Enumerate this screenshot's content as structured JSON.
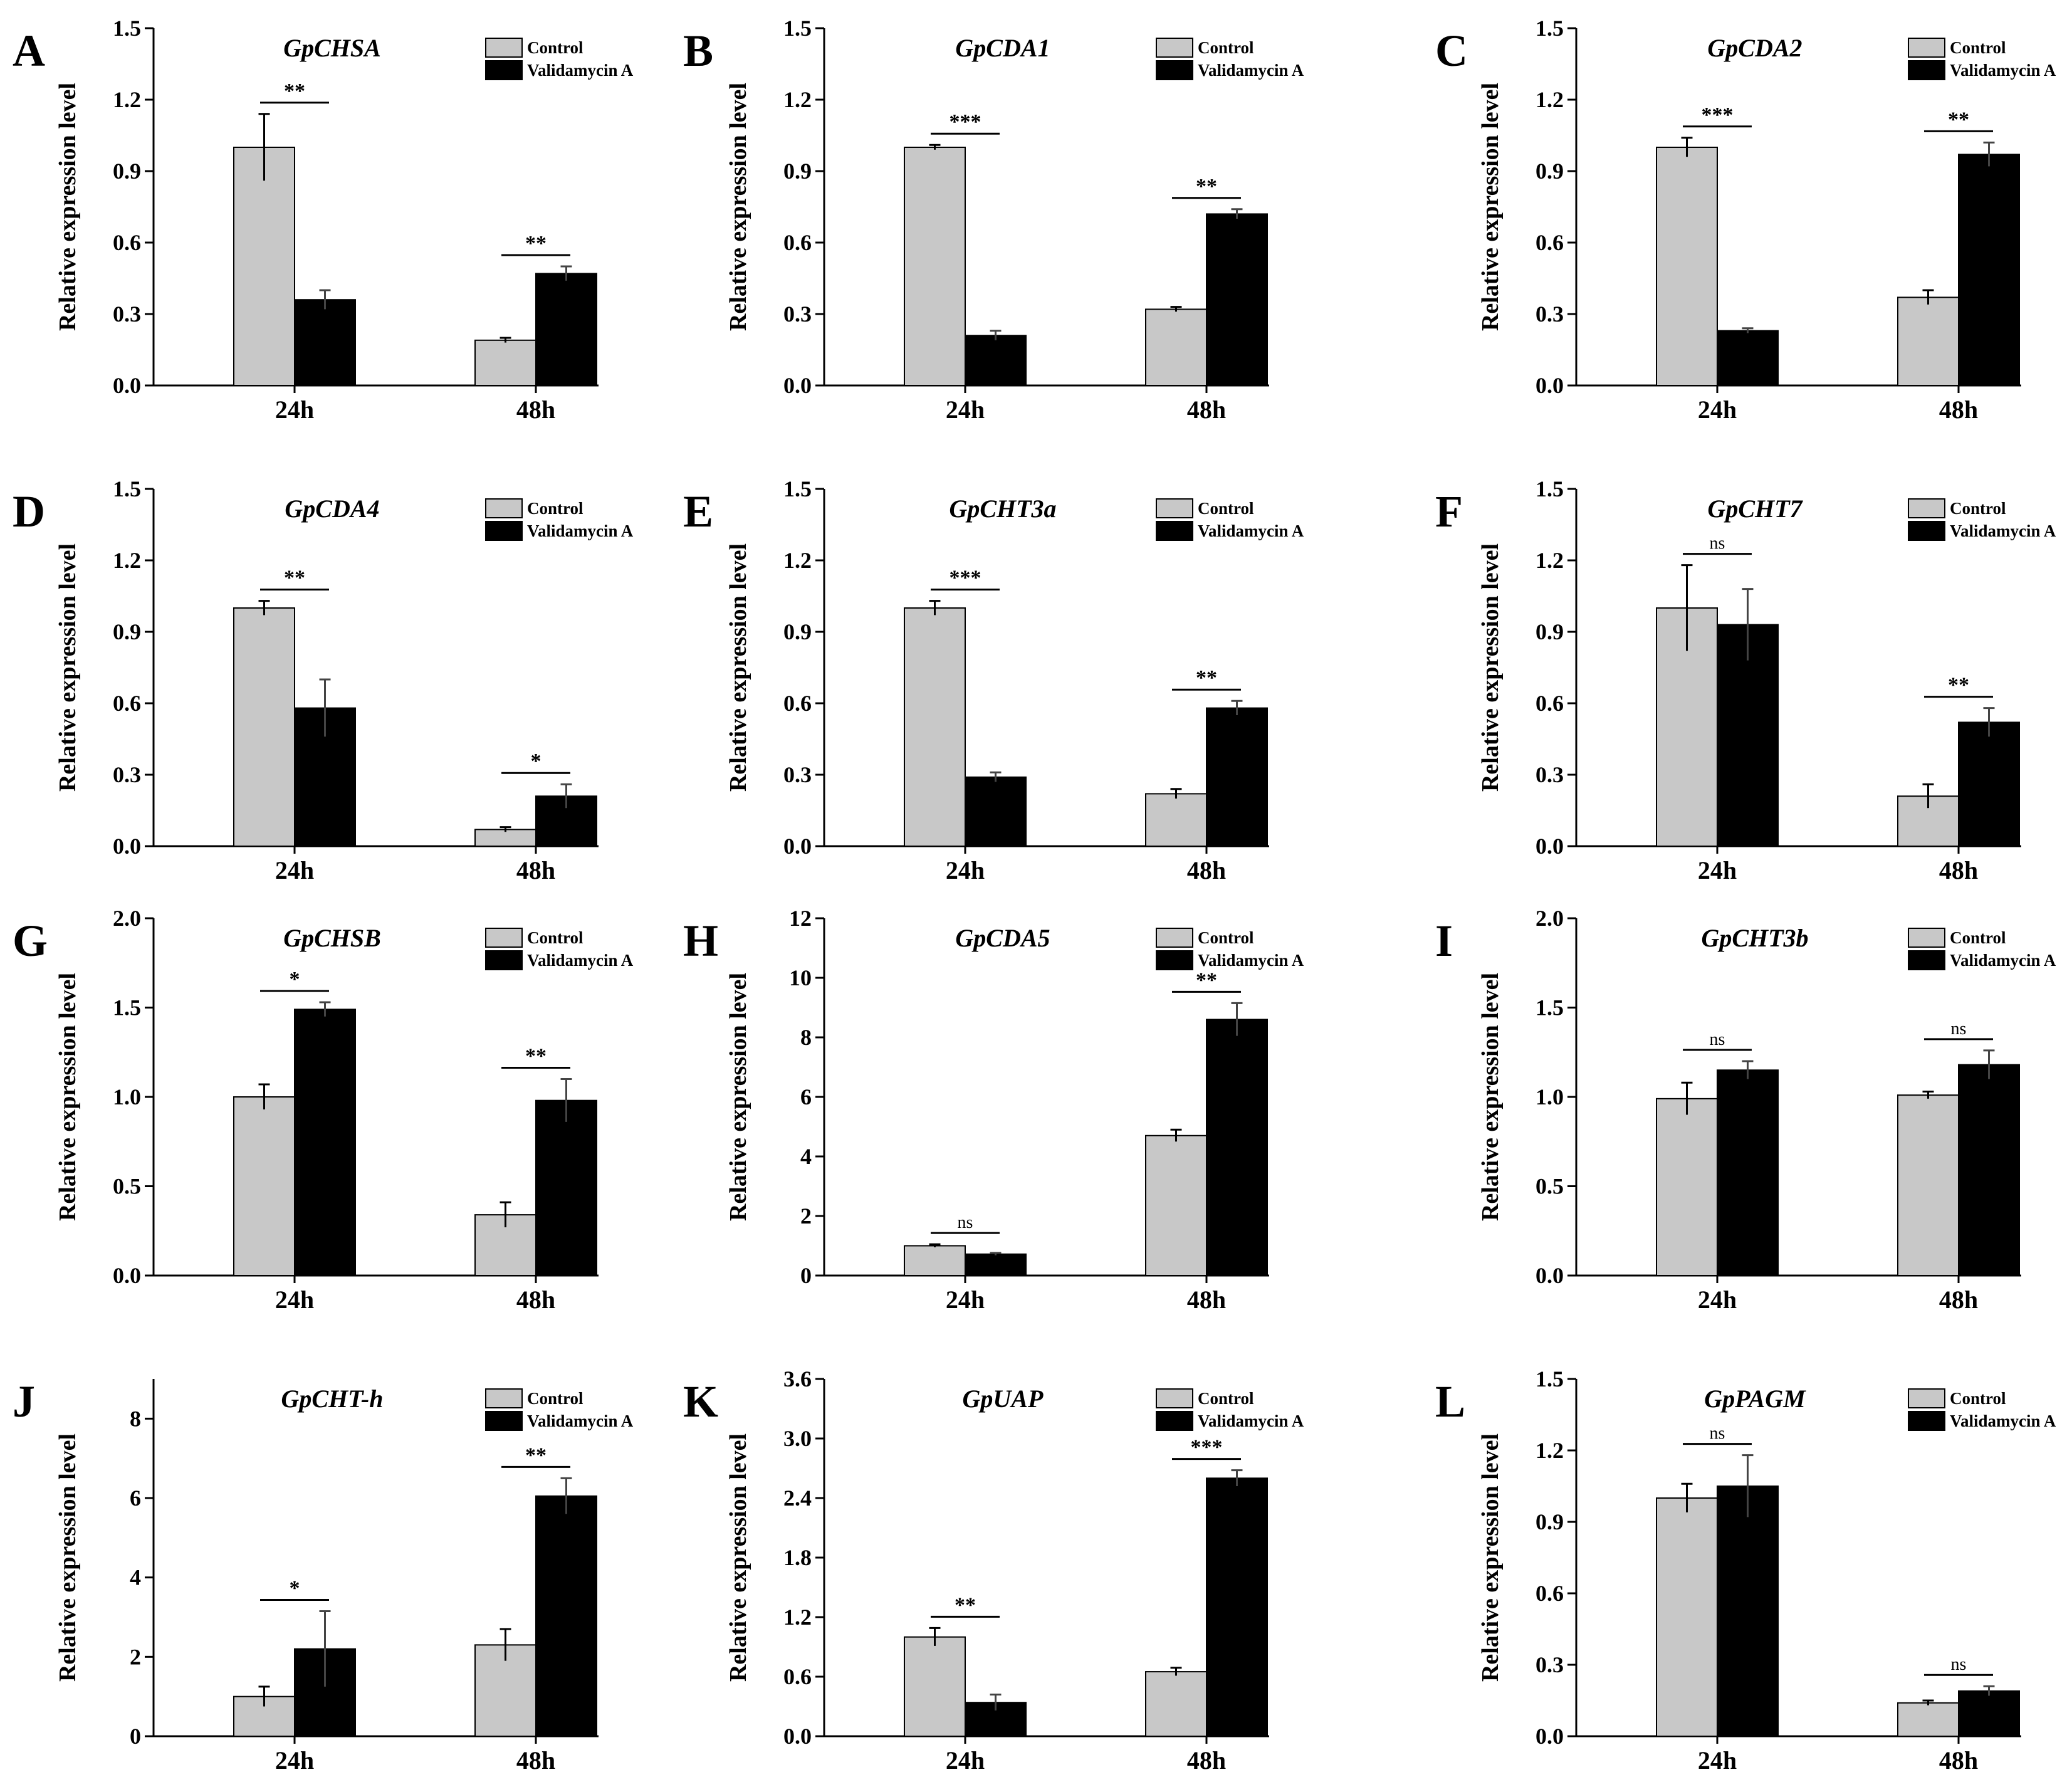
{
  "figure": {
    "colors": {
      "control": "#c8c8c8",
      "treatment": "#000000",
      "axis": "#000000"
    },
    "legend_labels": [
      "Control",
      "Validamycin A"
    ],
    "categories": [
      "24h",
      "48h"
    ],
    "ylabel": "Relative expression level"
  },
  "chart_data": [
    {
      "type": "bar",
      "panel": "A",
      "title": "GpCHSA",
      "xlabel": "",
      "ylabel": "Relative expression level",
      "categories": [
        "24h",
        "48h"
      ],
      "ylim": [
        0,
        1.5
      ],
      "yticks": [
        "0.0",
        "0.3",
        "0.6",
        "0.9",
        "1.2",
        "1.5"
      ],
      "legend": "top-right",
      "series": [
        {
          "name": "Control",
          "values": [
            1.0,
            0.19
          ],
          "errors": [
            0.14,
            0.01
          ]
        },
        {
          "name": "Validamycin A",
          "values": [
            0.36,
            0.47
          ],
          "errors": [
            0.04,
            0.03
          ]
        }
      ],
      "significance": [
        "**",
        "**"
      ]
    },
    {
      "type": "bar",
      "panel": "B",
      "title": "GpCDA1",
      "xlabel": "",
      "ylabel": "Relative expression level",
      "categories": [
        "24h",
        "48h"
      ],
      "ylim": [
        0,
        1.5
      ],
      "yticks": [
        "0.0",
        "0.3",
        "0.6",
        "0.9",
        "1.2",
        "1.5"
      ],
      "legend": "top-right",
      "series": [
        {
          "name": "Control",
          "values": [
            1.0,
            0.32
          ],
          "errors": [
            0.01,
            0.01
          ]
        },
        {
          "name": "Validamycin A",
          "values": [
            0.21,
            0.72
          ],
          "errors": [
            0.02,
            0.02
          ]
        }
      ],
      "significance": [
        "***",
        "**"
      ]
    },
    {
      "type": "bar",
      "panel": "C",
      "title": "GpCDA2",
      "xlabel": "",
      "ylabel": "Relative expression level",
      "categories": [
        "24h",
        "48h"
      ],
      "ylim": [
        0,
        1.5
      ],
      "yticks": [
        "0.0",
        "0.3",
        "0.6",
        "0.9",
        "1.2",
        "1.5"
      ],
      "legend": "top-right",
      "series": [
        {
          "name": "Control",
          "values": [
            1.0,
            0.37
          ],
          "errors": [
            0.04,
            0.03
          ]
        },
        {
          "name": "Validamycin A",
          "values": [
            0.23,
            0.97
          ],
          "errors": [
            0.01,
            0.05
          ]
        }
      ],
      "significance": [
        "***",
        "**"
      ]
    },
    {
      "type": "bar",
      "panel": "D",
      "title": "GpCDA4",
      "xlabel": "",
      "ylabel": "Relative expression level",
      "categories": [
        "24h",
        "48h"
      ],
      "ylim": [
        0,
        1.5
      ],
      "yticks": [
        "0.0",
        "0.3",
        "0.6",
        "0.9",
        "1.2",
        "1.5"
      ],
      "legend": "top-right",
      "series": [
        {
          "name": "Control",
          "values": [
            1.0,
            0.07
          ],
          "errors": [
            0.03,
            0.01
          ]
        },
        {
          "name": "Validamycin A",
          "values": [
            0.58,
            0.21
          ],
          "errors": [
            0.12,
            0.05
          ]
        }
      ],
      "significance": [
        "**",
        "*"
      ]
    },
    {
      "type": "bar",
      "panel": "E",
      "title": "GpCHT3a",
      "xlabel": "",
      "ylabel": "Relative expression level",
      "categories": [
        "24h",
        "48h"
      ],
      "ylim": [
        0,
        1.5
      ],
      "yticks": [
        "0.0",
        "0.3",
        "0.6",
        "0.9",
        "1.2",
        "1.5"
      ],
      "legend": "top-right",
      "series": [
        {
          "name": "Control",
          "values": [
            1.0,
            0.22
          ],
          "errors": [
            0.03,
            0.02
          ]
        },
        {
          "name": "Validamycin A",
          "values": [
            0.29,
            0.58
          ],
          "errors": [
            0.02,
            0.03
          ]
        }
      ],
      "significance": [
        "***",
        "**"
      ]
    },
    {
      "type": "bar",
      "panel": "F",
      "title": "GpCHT7",
      "xlabel": "",
      "ylabel": "Relative expression level",
      "categories": [
        "24h",
        "48h"
      ],
      "ylim": [
        0,
        1.5
      ],
      "yticks": [
        "0.0",
        "0.3",
        "0.6",
        "0.9",
        "1.2",
        "1.5"
      ],
      "legend": "top-right",
      "series": [
        {
          "name": "Control",
          "values": [
            1.0,
            0.21
          ],
          "errors": [
            0.18,
            0.05
          ]
        },
        {
          "name": "Validamycin A",
          "values": [
            0.93,
            0.52
          ],
          "errors": [
            0.15,
            0.06
          ]
        }
      ],
      "significance": [
        "ns",
        "**"
      ]
    },
    {
      "type": "bar",
      "panel": "G",
      "title": "GpCHSB",
      "xlabel": "",
      "ylabel": "Relative expression level",
      "categories": [
        "24h",
        "48h"
      ],
      "ylim": [
        0,
        2.0
      ],
      "yticks": [
        "0.0",
        "0.5",
        "1.0",
        "1.5",
        "2.0"
      ],
      "legend": "top-right",
      "series": [
        {
          "name": "Control",
          "values": [
            1.0,
            0.34
          ],
          "errors": [
            0.07,
            0.07
          ]
        },
        {
          "name": "Validamycin A",
          "values": [
            1.49,
            0.98
          ],
          "errors": [
            0.04,
            0.12
          ]
        }
      ],
      "significance": [
        "*",
        "**"
      ]
    },
    {
      "type": "bar",
      "panel": "H",
      "title": "GpCDA5",
      "xlabel": "",
      "ylabel": "Relative expression level",
      "categories": [
        "24h",
        "48h"
      ],
      "ylim": [
        0,
        12
      ],
      "yticks": [
        "0",
        "2",
        "4",
        "6",
        "8",
        "10",
        "12"
      ],
      "legend": "top-right",
      "series": [
        {
          "name": "Control",
          "values": [
            1.0,
            4.7
          ],
          "errors": [
            0.05,
            0.2
          ]
        },
        {
          "name": "Validamycin A",
          "values": [
            0.72,
            8.6
          ],
          "errors": [
            0.04,
            0.55
          ]
        }
      ],
      "significance": [
        "ns",
        "**"
      ]
    },
    {
      "type": "bar",
      "panel": "I",
      "title": "GpCHT3b",
      "xlabel": "",
      "ylabel": "Relative expression level",
      "categories": [
        "24h",
        "48h"
      ],
      "ylim": [
        0,
        2.0
      ],
      "yticks": [
        "0.0",
        "0.5",
        "1.0",
        "1.5",
        "2.0"
      ],
      "legend": "top-right",
      "series": [
        {
          "name": "Control",
          "values": [
            0.99,
            1.01
          ],
          "errors": [
            0.09,
            0.02
          ]
        },
        {
          "name": "Validamycin A",
          "values": [
            1.15,
            1.18
          ],
          "errors": [
            0.05,
            0.08
          ]
        }
      ],
      "significance": [
        "ns",
        "ns"
      ]
    },
    {
      "type": "bar",
      "panel": "J",
      "title": "GpCHT-h",
      "xlabel": "",
      "ylabel": "Relative expression level",
      "categories": [
        "24h",
        "48h"
      ],
      "ylim": [
        0,
        9
      ],
      "yticks": [
        "0",
        "2",
        "4",
        "6",
        "8"
      ],
      "legend": "top-right",
      "series": [
        {
          "name": "Control",
          "values": [
            1.0,
            2.3
          ],
          "errors": [
            0.25,
            0.4
          ]
        },
        {
          "name": "Validamycin A",
          "values": [
            2.2,
            6.05
          ],
          "errors": [
            0.95,
            0.45
          ]
        }
      ],
      "significance": [
        "*",
        "**"
      ]
    },
    {
      "type": "bar",
      "panel": "K",
      "title": "GpUAP",
      "xlabel": "",
      "ylabel": "Relative expression level",
      "categories": [
        "24h",
        "48h"
      ],
      "ylim": [
        0,
        3.6
      ],
      "yticks": [
        "0.0",
        "0.6",
        "1.2",
        "1.8",
        "2.4",
        "3.0",
        "3.6"
      ],
      "legend": "top-right",
      "series": [
        {
          "name": "Control",
          "values": [
            1.0,
            0.65
          ],
          "errors": [
            0.09,
            0.04
          ]
        },
        {
          "name": "Validamycin A",
          "values": [
            0.34,
            2.6
          ],
          "errors": [
            0.08,
            0.08
          ]
        }
      ],
      "significance": [
        "**",
        "***"
      ]
    },
    {
      "type": "bar",
      "panel": "L",
      "title": "GpPAGM",
      "xlabel": "",
      "ylabel": "Relative expression level",
      "categories": [
        "24h",
        "48h"
      ],
      "ylim": [
        0,
        1.5
      ],
      "yticks": [
        "0.0",
        "0.3",
        "0.6",
        "0.9",
        "1.2",
        "1.5"
      ],
      "legend": "top-right",
      "series": [
        {
          "name": "Control",
          "values": [
            1.0,
            0.14
          ],
          "errors": [
            0.06,
            0.01
          ]
        },
        {
          "name": "Validamycin A",
          "values": [
            1.05,
            0.19
          ],
          "errors": [
            0.13,
            0.02
          ]
        }
      ],
      "significance": [
        "ns",
        "ns"
      ]
    }
  ]
}
